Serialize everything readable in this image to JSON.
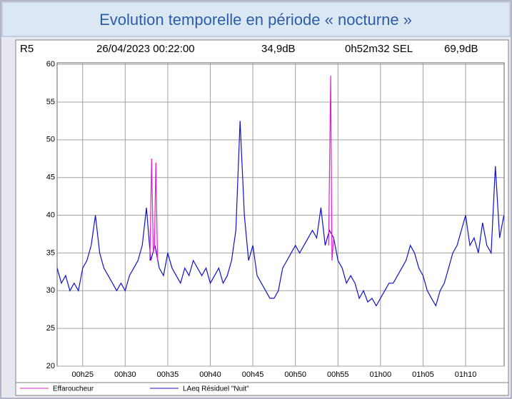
{
  "chart_data": {
    "type": "line",
    "title": "Evolution temporelle en période « nocturne »",
    "header": [
      "R5",
      "26/04/2023 00:22:00",
      "34,9dB",
      "0h52m32 SEL",
      "69,9dB"
    ],
    "xlim": [
      22,
      74.53
    ],
    "xticks": [
      {
        "value": 25,
        "label": "00h25"
      },
      {
        "value": 30,
        "label": "00h30"
      },
      {
        "value": 35,
        "label": "00h35"
      },
      {
        "value": 40,
        "label": "00h40"
      },
      {
        "value": 45,
        "label": "00h45"
      },
      {
        "value": 50,
        "label": "00h50"
      },
      {
        "value": 55,
        "label": "00h55"
      },
      {
        "value": 60,
        "label": "01h00"
      },
      {
        "value": 65,
        "label": "01h05"
      },
      {
        "value": 70,
        "label": "01h10"
      }
    ],
    "ylim": [
      20,
      60.2
    ],
    "yticks": [
      20,
      25,
      30,
      35,
      40,
      45,
      50,
      55,
      60
    ],
    "grid": true,
    "series": [
      {
        "name": "Effaroucheur",
        "color": "#e020d0",
        "x": [
          32.9,
          33.1,
          33.3,
          33.45,
          33.6,
          33.8,
          44,
          53.9,
          54.15,
          54.3,
          54.5
        ],
        "values": [
          34,
          47.5,
          35,
          36,
          47,
          34,
          null,
          36,
          58.5,
          34,
          37
        ]
      },
      {
        "name": "LAeq Résiduel \"Nuit\"",
        "color": "#1010d0",
        "x": [
          22,
          22.5,
          23,
          23.5,
          24,
          24.5,
          25,
          25.5,
          26,
          26.5,
          27,
          27.5,
          28,
          28.5,
          29,
          29.5,
          30,
          30.5,
          31,
          31.5,
          32,
          32.5,
          33,
          33.5,
          34,
          34.5,
          35,
          35.5,
          36,
          36.5,
          37,
          37.5,
          38,
          38.5,
          39,
          39.5,
          40,
          40.5,
          41,
          41.5,
          42,
          42.5,
          43,
          43.5,
          44,
          44.5,
          45,
          45.5,
          46,
          46.5,
          47,
          47.5,
          48,
          48.5,
          49,
          49.5,
          50,
          50.5,
          51,
          51.5,
          52,
          52.5,
          53,
          53.5,
          54,
          54.5,
          55,
          55.5,
          56,
          56.5,
          57,
          57.5,
          58,
          58.5,
          59,
          59.5,
          60,
          60.5,
          61,
          61.5,
          62,
          62.5,
          63,
          63.5,
          64,
          64.5,
          65,
          65.5,
          66,
          66.5,
          67,
          67.5,
          68,
          68.5,
          69,
          69.5,
          70,
          70.5,
          71,
          71.5,
          72,
          72.5,
          73,
          73.5,
          74,
          74.5
        ],
        "values": [
          33,
          31,
          32,
          30,
          31,
          30,
          33,
          34,
          36,
          40,
          35,
          33,
          32,
          31,
          30,
          31,
          30,
          32,
          33,
          34,
          36,
          41,
          34,
          36,
          33,
          32,
          35,
          33,
          32,
          31,
          33,
          32,
          34,
          33,
          32,
          33,
          31,
          32,
          33,
          31,
          32,
          34,
          38,
          52.5,
          40,
          34,
          36,
          32,
          31,
          30,
          29,
          29,
          30,
          33,
          34,
          35,
          36,
          35,
          36,
          37,
          38,
          37,
          41,
          36,
          38,
          37,
          34,
          33,
          31,
          32,
          31,
          29,
          30,
          28.5,
          29,
          28,
          29,
          30,
          31,
          31,
          32,
          33,
          34,
          36,
          35,
          33,
          32,
          30,
          29,
          28,
          30,
          31,
          33,
          35,
          36,
          38,
          40,
          36,
          37,
          35,
          39,
          36,
          35,
          46.5,
          37,
          40
        ]
      }
    ]
  }
}
